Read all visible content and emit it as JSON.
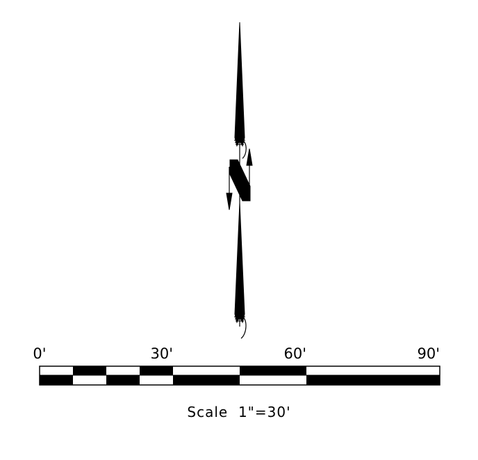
{
  "scale_bar": {
    "labels": [
      "0'",
      "30'",
      "60'",
      "90'"
    ],
    "caption": "Scale  1\"=30'"
  },
  "colors": {
    "ink": "#000000",
    "paper": "#ffffff"
  }
}
